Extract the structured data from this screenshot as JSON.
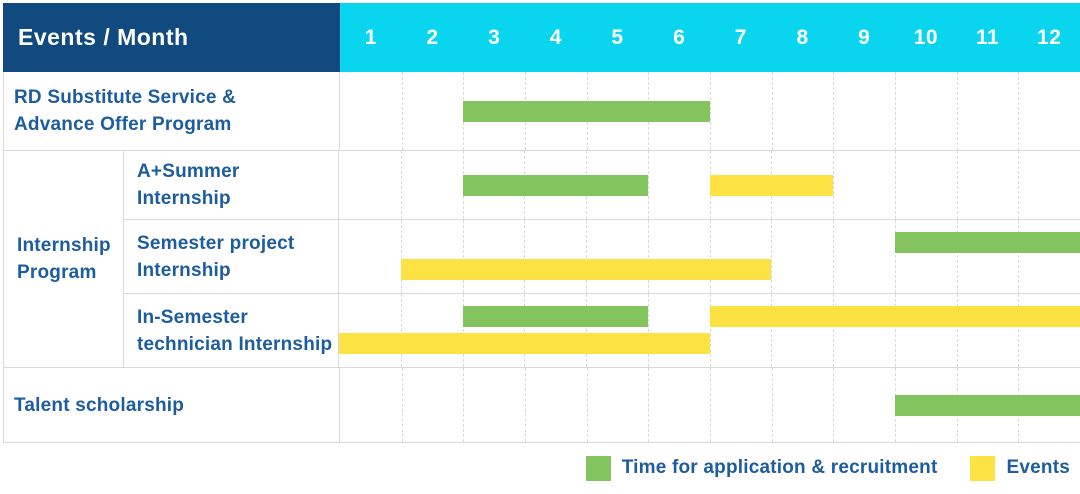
{
  "header": {
    "title": "Events / Month"
  },
  "group_cell": {
    "label": "Internship Program",
    "label_lines": [
      "Internship",
      "Program"
    ]
  },
  "colors": {
    "header_bg": "#114a7e",
    "month_header_bg": "#09d6ee",
    "application_green": "#83c45e",
    "event_yellow": "#fde244",
    "label_text_blue": "#1d5c9e",
    "header_text": "#ffffff",
    "grid_line": "#d9d9d9"
  },
  "chart_data": {
    "type": "gantt",
    "title": "Events / Month",
    "x_axis": {
      "label": "Month",
      "min": 1,
      "max": 12,
      "ticks": [
        "1",
        "2",
        "3",
        "4",
        "5",
        "6",
        "7",
        "8",
        "9",
        "10",
        "11",
        "12"
      ]
    },
    "legend": [
      {
        "kind": "application",
        "label": "Time for application & recruitment",
        "color": "#83c45e"
      },
      {
        "kind": "event",
        "label": "Events",
        "color": "#fde244"
      }
    ],
    "tasks": [
      {
        "group": "",
        "label": "RD Substitute Service & Advance Offer Program",
        "label_lines": [
          "RD Substitute Service &",
          "Advance Offer Program"
        ],
        "bars": [
          {
            "kind": "application",
            "from": 3,
            "to": 7,
            "months_covered": "3-6",
            "line": 0
          }
        ]
      },
      {
        "group": "Internship Program",
        "label": "A+Summer Internship",
        "label_lines": [
          "A+Summer",
          "Internship"
        ],
        "bars": [
          {
            "kind": "application",
            "from": 3,
            "to": 6,
            "months_covered": "3-5",
            "line": 0
          },
          {
            "kind": "event",
            "from": 7,
            "to": 9,
            "months_covered": "7-8",
            "line": 0
          }
        ]
      },
      {
        "group": "Internship Program",
        "label": "Semester project Internship",
        "label_lines": [
          "Semester project",
          "Internship"
        ],
        "bars": [
          {
            "kind": "application",
            "from": 10,
            "to": 13,
            "months_covered": "10-12",
            "line": 0
          },
          {
            "kind": "event",
            "from": 2,
            "to": 8,
            "months_covered": "2-7",
            "line": 1
          }
        ]
      },
      {
        "group": "Internship Program",
        "label": "In-Semester technician Internship",
        "label_lines": [
          "In-Semester",
          "technician Internship"
        ],
        "bars": [
          {
            "kind": "application",
            "from": 3,
            "to": 6,
            "months_covered": "3-5",
            "line": 0
          },
          {
            "kind": "event",
            "from": 7,
            "to": 13,
            "months_covered": "7-12",
            "line": 0
          },
          {
            "kind": "event",
            "from": 1,
            "to": 7,
            "months_covered": "1-6",
            "line": 1
          }
        ]
      },
      {
        "group": "",
        "label": "Talent scholarship",
        "label_lines": [
          "Talent scholarship"
        ],
        "bars": [
          {
            "kind": "application",
            "from": 10,
            "to": 13,
            "months_covered": "10-12",
            "line": 0
          }
        ]
      }
    ]
  }
}
